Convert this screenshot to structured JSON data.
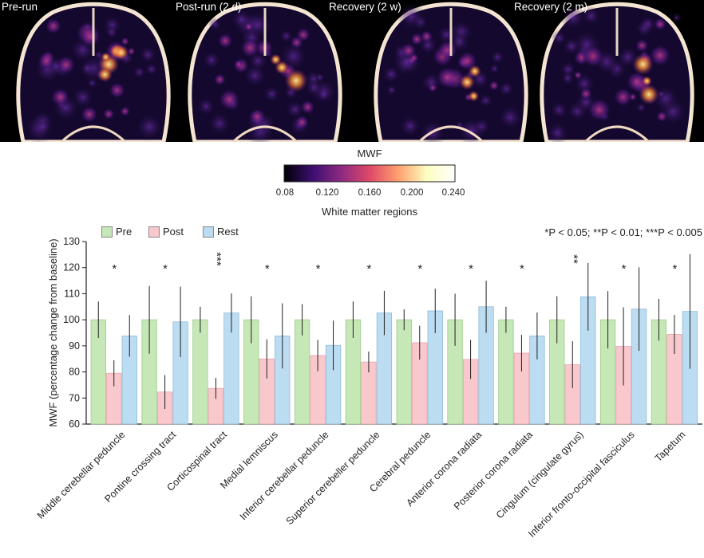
{
  "panels": [
    {
      "label": "Pre-run"
    },
    {
      "label": "Post-run (2 d)"
    },
    {
      "label": "Recovery (2 w)"
    },
    {
      "label": "Recovery (2 m)"
    }
  ],
  "colorbar": {
    "title": "MWF",
    "ticks": [
      "0.08",
      "0.120",
      "0.160",
      "0.200",
      "0.240"
    ],
    "colors": [
      "#000004",
      "#3b0f70",
      "#8c2981",
      "#de4968",
      "#fe9f6d",
      "#fcfdbf",
      "#ffffff"
    ]
  },
  "section_title": "White matter regions",
  "significance_note": "*P < 0.05; **P < 0.01; ***P < 0.005",
  "colors": {
    "Pre": "#c6e8b7",
    "Post": "#f8c8cc",
    "Rest": "#bcdcf1",
    "error": "#231f20"
  },
  "chart_data": {
    "type": "bar",
    "ylabel": "MWF (percentage change from baseline)",
    "ylim": [
      60,
      130
    ],
    "yticks": [
      60,
      70,
      80,
      90,
      100,
      110,
      120,
      130
    ],
    "categories": [
      "Middle cerebellar peduncle",
      "Pontine crossing tract",
      "Corticospinal tract",
      "Medial lemniscus",
      "Inferior cerebellar peduncle",
      "Superior cerebeller peduncle",
      "Cerebral peduncle",
      "Anterior corona radiata",
      "Posterior corona radiata",
      "Cingulum (cingulate gyrus)",
      "Inferior fronto-occipital fasciculus",
      "Tapetum"
    ],
    "legend_position": "top-left",
    "series": [
      {
        "name": "Pre",
        "values": [
          100,
          100,
          100,
          100,
          100,
          100,
          100,
          100,
          100,
          100,
          100,
          100
        ],
        "errors": [
          7,
          13,
          5,
          9,
          6,
          7,
          4,
          10,
          5,
          9,
          11,
          8
        ]
      },
      {
        "name": "Post",
        "values": [
          79.5,
          72.3,
          73.7,
          85.0,
          86.3,
          83.8,
          91.2,
          84.8,
          87.2,
          82.8,
          89.8,
          94.4
        ],
        "errors": [
          5,
          6.5,
          4,
          7.5,
          6,
          4,
          6.5,
          7.5,
          7,
          9,
          15,
          7.5
        ]
      },
      {
        "name": "Rest",
        "values": [
          93.8,
          99.2,
          102.6,
          93.8,
          90.2,
          102.6,
          103.4,
          105.0,
          93.8,
          108.8,
          104.1,
          103.2
        ],
        "errors": [
          8,
          13.5,
          7.5,
          12.5,
          9.5,
          8.5,
          8.5,
          10,
          9,
          13,
          16,
          22
        ]
      }
    ],
    "significance": [
      "*",
      "*",
      "***",
      "*",
      "*",
      "*",
      "*",
      "*",
      "*",
      "**",
      "*",
      "*"
    ]
  }
}
